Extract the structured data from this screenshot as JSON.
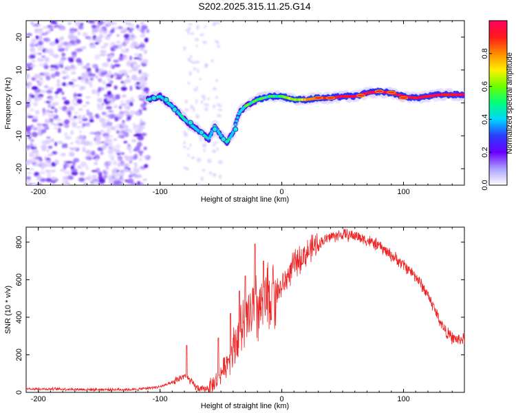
{
  "title": "S202.2025.315.11.25.G14",
  "chart_data": [
    {
      "type": "heatmap",
      "name": "spectrogram",
      "title": "S202.2025.315.11.25.G14",
      "xlabel": "Height of straight line (km)",
      "ylabel": "Frequency (Hz)",
      "xlim": [
        -210,
        150
      ],
      "ylim": [
        -25,
        25
      ],
      "xticks": [
        -200,
        -100,
        0,
        100
      ],
      "yticks": [
        -20,
        -10,
        0,
        10,
        20
      ],
      "colorbar": {
        "label": "Normalized spectral amplitude",
        "range": [
          0,
          1
        ],
        "ticks": [
          0.0,
          0.2,
          0.4,
          0.6,
          0.8
        ],
        "tick_labels": [
          "0.0",
          "0.2",
          "0.4",
          "0.6",
          "0.8"
        ],
        "colors": [
          "#ffffff",
          "#a9a0ff",
          "#6a00ff",
          "#2a3cff",
          "#00d6ff",
          "#00ff7a",
          "#6cff00",
          "#fff000",
          "#ff8a00",
          "#ff1a1a",
          "#ff0060"
        ]
      },
      "ridge": {
        "x": [
          -110,
          -100,
          -90,
          -80,
          -70,
          -60,
          -55,
          -50,
          -45,
          -40,
          -35,
          -30,
          -25,
          -20,
          -10,
          0,
          10,
          20,
          30,
          40,
          50,
          60,
          70,
          80,
          90,
          100,
          110,
          120,
          130,
          140,
          150
        ],
        "y": [
          1,
          2,
          -1,
          -5,
          -8,
          -11,
          -7,
          -10,
          -12,
          -9,
          -3,
          -1,
          0,
          1,
          2,
          2,
          1,
          1,
          1.5,
          1.5,
          2,
          2,
          3,
          3.5,
          3,
          2,
          1.5,
          2,
          2.5,
          2.5,
          2.5
        ]
      },
      "noise_region_x": [
        -210,
        -110
      ]
    },
    {
      "type": "line",
      "name": "snr",
      "xlabel": "Height of straight line (km)",
      "ylabel": "SNR (10 * v/v)",
      "xlim": [
        -210,
        150
      ],
      "ylim": [
        0,
        880
      ],
      "xticks": [
        -200,
        -100,
        0,
        100
      ],
      "yticks": [
        0,
        200,
        400,
        600,
        800
      ],
      "color": "#ee2222",
      "envelope": {
        "x": [
          -210,
          -160,
          -120,
          -100,
          -90,
          -85,
          -80,
          -75,
          -70,
          -65,
          -60,
          -55,
          -50,
          -45,
          -40,
          -35,
          -30,
          -25,
          -20,
          -15,
          -10,
          -5,
          0,
          10,
          20,
          30,
          40,
          50,
          60,
          70,
          80,
          90,
          100,
          110,
          120,
          130,
          135,
          140,
          145,
          150
        ],
        "y": [
          20,
          15,
          15,
          30,
          50,
          70,
          90,
          60,
          25,
          15,
          25,
          50,
          100,
          160,
          240,
          310,
          370,
          420,
          450,
          460,
          490,
          530,
          560,
          680,
          740,
          790,
          830,
          840,
          835,
          810,
          780,
          730,
          680,
          620,
          520,
          380,
          320,
          290,
          280,
          285
        ]
      },
      "spikes": [
        {
          "x": -78,
          "y": 250
        },
        {
          "x": -52,
          "y": 290
        },
        {
          "x": -42,
          "y": 420
        },
        {
          "x": -35,
          "y": 540
        },
        {
          "x": -30,
          "y": 620
        },
        {
          "x": -22,
          "y": 790
        },
        {
          "x": -15,
          "y": 700
        },
        {
          "x": -8,
          "y": 580
        }
      ]
    }
  ]
}
